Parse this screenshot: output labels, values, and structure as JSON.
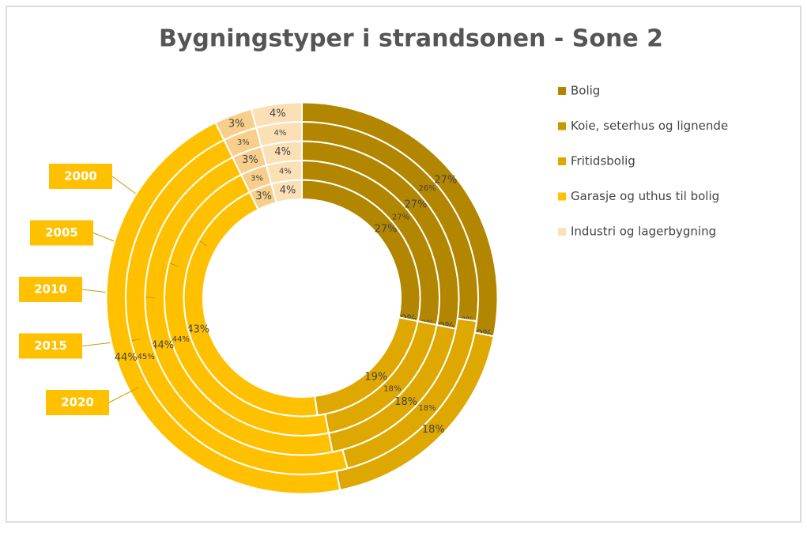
{
  "chart_data": {
    "type": "donut",
    "title": "Bygningstyper i strandsonen - Sone 2",
    "categories": [
      "Bolig",
      "Koie, seterhus og lignende",
      "Fritidsbolig",
      "Garasje og uthus til bolig",
      null,
      "Industri og lagerbygning"
    ],
    "colors": [
      "#b38600",
      "#c99800",
      "#dfa800",
      "#ffc000",
      "#f8cf8a",
      "#fbdfb5"
    ],
    "series": [
      {
        "name": "2000",
        "values": [
          27,
          0,
          19,
          43,
          3,
          4
        ],
        "value_labels": [
          "27%",
          "0%",
          "19%",
          "43%",
          "3%",
          "4%"
        ]
      },
      {
        "name": "2005",
        "values": [
          27,
          0,
          18,
          44,
          3,
          4
        ],
        "value_labels": [
          "27%",
          "0%",
          "18%",
          "44%",
          "3%",
          "4%"
        ]
      },
      {
        "name": "2010",
        "values": [
          27,
          0,
          18,
          44,
          3,
          4
        ],
        "value_labels": [
          "27%",
          "0%",
          "18%",
          "44%",
          "3%",
          "4%"
        ]
      },
      {
        "name": "2015",
        "values": [
          26,
          0,
          18,
          45,
          3,
          4
        ],
        "value_labels": [
          "26%",
          "0%",
          "18%",
          "45%",
          "3%",
          "4%"
        ]
      },
      {
        "name": "2020",
        "values": [
          27,
          0,
          18,
          44,
          3,
          4
        ],
        "value_labels": [
          "27%",
          "0%",
          "18%",
          "44%",
          "3%",
          "4%"
        ]
      }
    ]
  }
}
